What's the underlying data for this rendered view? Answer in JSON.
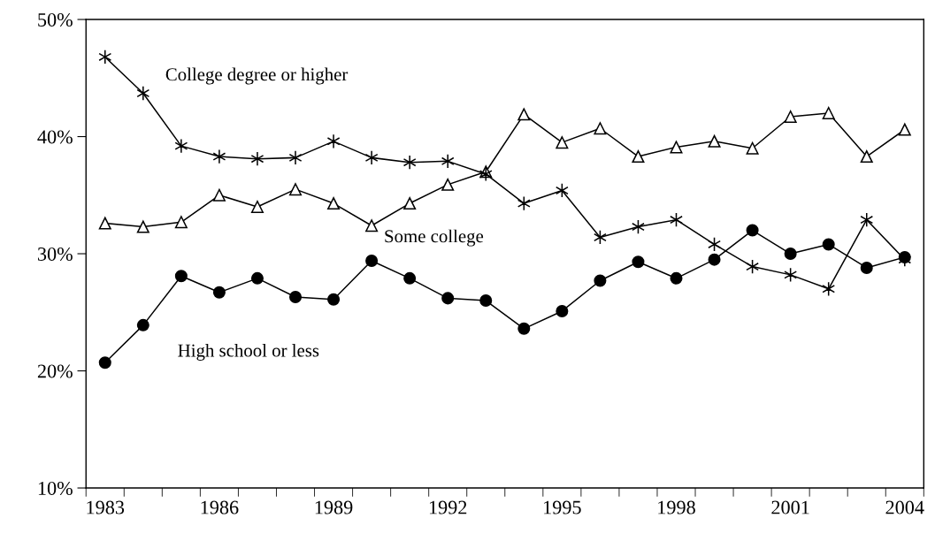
{
  "chart_data": {
    "type": "line",
    "categories": [
      "1983",
      null,
      null,
      "1986",
      null,
      null,
      "1989",
      null,
      null,
      "1992",
      null,
      null,
      "1995",
      null,
      null,
      "1998",
      null,
      null,
      "2001",
      null,
      null,
      "2004"
    ],
    "series": [
      {
        "name": "College degree or higher",
        "color": "#000000",
        "marker": "cross",
        "values": [
          46.8,
          43.7,
          39.2,
          38.3,
          38.1,
          38.2,
          39.6,
          38.2,
          37.8,
          37.9,
          36.8,
          34.3,
          35.4,
          31.4,
          32.3,
          32.9,
          30.8,
          28.9,
          28.2,
          27.0,
          32.9,
          29.5
        ]
      },
      {
        "name": "Some college",
        "color": "#000000",
        "marker": "triangle",
        "values": [
          32.6,
          32.3,
          32.7,
          35.0,
          34.0,
          35.5,
          34.3,
          32.4,
          34.3,
          35.9,
          37.0,
          41.9,
          39.5,
          40.7,
          38.3,
          39.1,
          39.6,
          39.0,
          41.7,
          42.0,
          38.3,
          40.6
        ]
      },
      {
        "name": "High school or less",
        "color": "#000000",
        "marker": "circle",
        "values": [
          20.7,
          23.9,
          28.1,
          26.7,
          27.9,
          26.3,
          26.1,
          29.4,
          27.9,
          26.2,
          26.0,
          23.6,
          25.1,
          27.7,
          29.3,
          27.9,
          29.5,
          32.0,
          30.0,
          30.8,
          28.8,
          29.7
        ]
      }
    ],
    "ylim": [
      10,
      50
    ],
    "yticks": [
      {
        "value": 10,
        "label": "10%"
      },
      {
        "value": 20,
        "label": "20%"
      },
      {
        "value": 30,
        "label": "30%"
      },
      {
        "value": 40,
        "label": "40%"
      },
      {
        "value": 50,
        "label": "50%"
      }
    ],
    "grid": false,
    "legend": false,
    "line_style": "solid"
  }
}
